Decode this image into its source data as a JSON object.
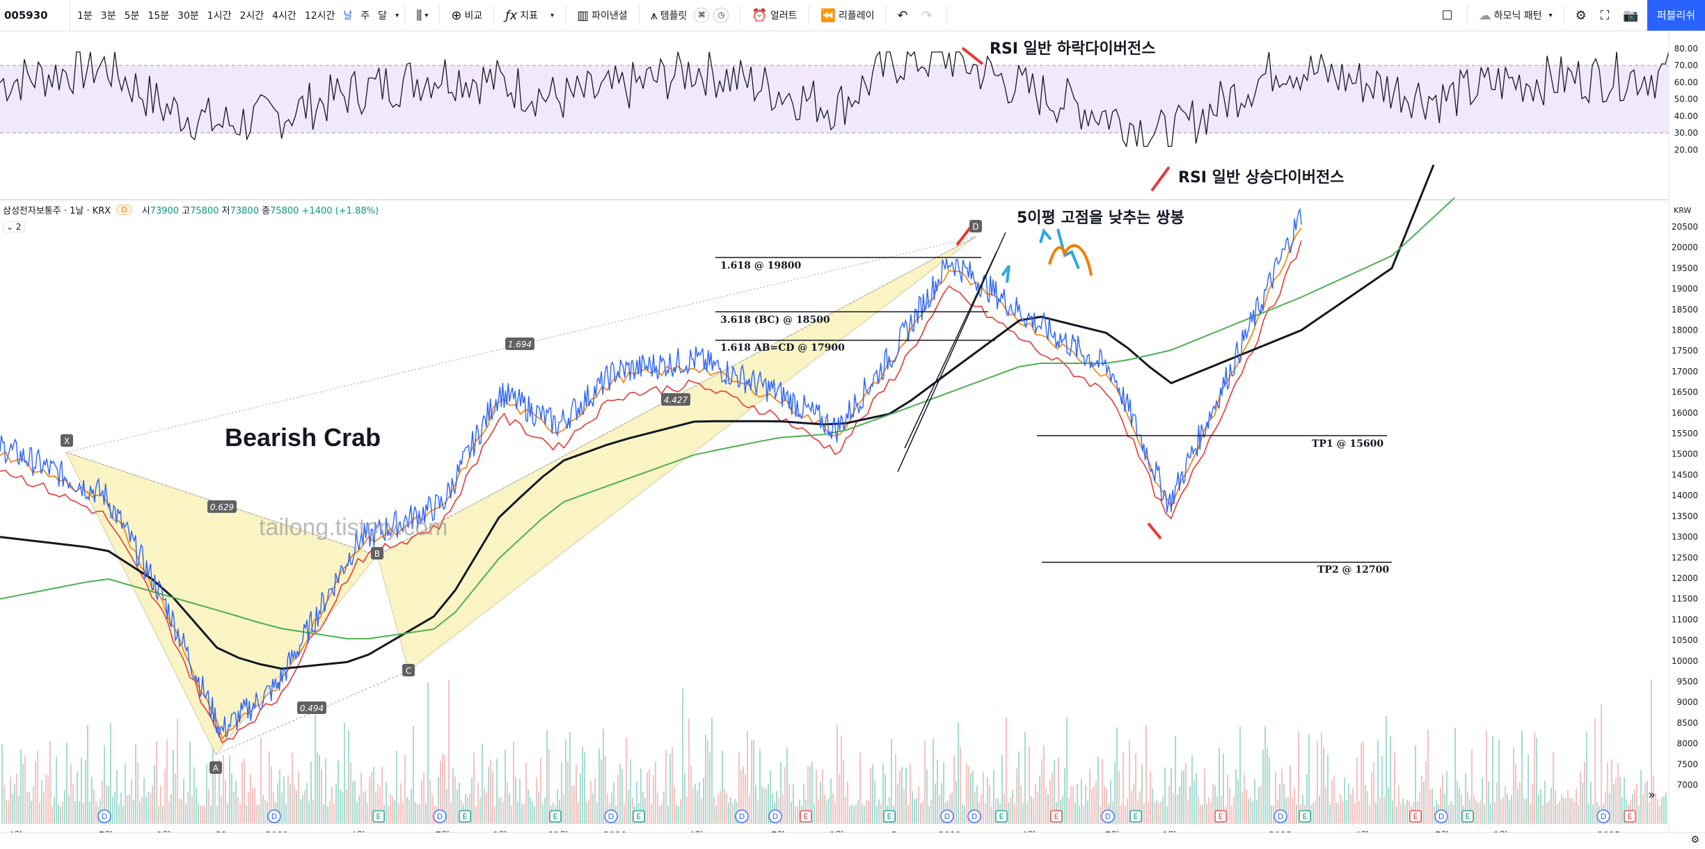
{
  "toolbar": {
    "symbol": "005930",
    "intervals": [
      "1분",
      "3분",
      "5분",
      "15분",
      "30분",
      "1시간",
      "2시간",
      "4시간",
      "12시간",
      "날",
      "주",
      "달"
    ],
    "active_interval": "날",
    "compare_label": "비교",
    "indicators_label": "지표",
    "pine_label": "파이낸셜",
    "templates_label": "템플릿",
    "alert_label": "얼러트",
    "replay_label": "리플레이",
    "harmonic_label": "하모닉 패턴",
    "publish_label": "퍼블리쉬"
  },
  "legend": {
    "name": "삼성전자보통주 · 1날 · KRX",
    "badge": "D",
    "o_label": "시",
    "o": "73900",
    "h_label": "고",
    "h": "75800",
    "l_label": "저",
    "l": "73800",
    "c_label": "종",
    "c": "75800",
    "change": "+1400 (+1.88%)",
    "collapse": "2"
  },
  "annotations": {
    "pattern_title": "Bearish Crab",
    "watermark": "tailong.tistory.com",
    "rsi_bear": "RSI 일반 하락다이버전스",
    "rsi_bull": "RSI 일반 상승다이버전스",
    "double_top": "5이평 고점을 낮추는 쌍봉",
    "fib_1618": "1.618 @ 19800",
    "fib_bc": "3.618 (BC) @ 18500",
    "fib_abcd": "1.618 AB=CD @ 17900",
    "tp1": "TP1 @ 15600",
    "tp2": "TP2 @ 12700",
    "ratio_xb": "0.629",
    "ratio_xd": "1.694",
    "ratio_bd": "4.427",
    "ratio_ac": "0.494",
    "pt_x": "X",
    "pt_a": "A",
    "pt_b": "B",
    "pt_c": "C",
    "pt_d": "D",
    "scale_label": "KRW"
  },
  "chart_data": [
    {
      "type": "line",
      "title": "RSI",
      "y_ticks": [
        20,
        30,
        40,
        50,
        60,
        70,
        80
      ],
      "ylim": [
        20,
        80
      ],
      "band": [
        30,
        70
      ],
      "x": [
        "2008-04",
        "2008-07",
        "2008-09",
        "2008-10-31",
        "2009-01",
        "2009-04",
        "2009-07",
        "2009-09",
        "2009-11",
        "2010-01",
        "2010-04",
        "2010-07",
        "2010-09",
        "2010-12",
        "2011-01",
        "2011-04",
        "2011-07",
        "2011-09",
        "2012-01",
        "2012-04",
        "2012-07",
        "2012-09",
        "2013-01"
      ],
      "series": [
        {
          "values": [
            60,
            70,
            45,
            35,
            40,
            55,
            65,
            60,
            50,
            55,
            68,
            55,
            45,
            72,
            75,
            55,
            40,
            28,
            70,
            60,
            50,
            60,
            65
          ]
        }
      ]
    },
    {
      "type": "line",
      "title": "삼성전자보통주 1날 KRX",
      "x_ticks": [
        "4월",
        "7월",
        "9월",
        "31",
        "2009",
        "4월",
        "7월",
        "9월",
        "11월",
        "2010",
        "4월",
        "7월",
        "9월",
        "3",
        "2011",
        "4월",
        "7월",
        "9월",
        "2012",
        "4월",
        "7월",
        "9월",
        "2013"
      ],
      "y_ticks": [
        7000,
        7500,
        8000,
        8500,
        9000,
        9500,
        10000,
        10500,
        11000,
        11500,
        12000,
        12500,
        13000,
        13500,
        14000,
        14500,
        15000,
        15500,
        16000,
        16500,
        17000,
        17500,
        18000,
        18500,
        19000,
        19500,
        20000,
        20500
      ],
      "ylim": [
        6800,
        20850
      ],
      "x": [
        "2008-04",
        "2008-07",
        "2008-09",
        "2008-10-31",
        "2009-01",
        "2009-04",
        "2009-07",
        "2009-09",
        "2009-11",
        "2010-01",
        "2010-04",
        "2010-07",
        "2010-09",
        "2010-12",
        "2011-01",
        "2011-04",
        "2011-07",
        "2011-09",
        "2012-01"
      ],
      "series": [
        {
          "values": [
            15200,
            14000,
            11500,
            8300,
            9400,
            12900,
            13800,
            16500,
            15700,
            17000,
            17300,
            16500,
            15600,
            17500,
            19700,
            18300,
            17000,
            13800,
            20800
          ]
        },
        {
          "values": [
            13000,
            12700,
            11800,
            10200,
            9800,
            10000,
            11200,
            13500,
            14800,
            15300,
            15800,
            15800,
            15700,
            16000,
            17000,
            18400,
            17900,
            16700,
            18000
          ]
        },
        {
          "values": [
            11500,
            12000,
            11600,
            11200,
            10800,
            10500,
            10800,
            12500,
            13800,
            14300,
            15000,
            15400,
            15500,
            16000,
            16500,
            17200,
            17200,
            17500,
            18800
          ]
        }
      ],
      "fib_levels": [
        19800,
        18500,
        17900,
        15600,
        12700
      ]
    }
  ]
}
